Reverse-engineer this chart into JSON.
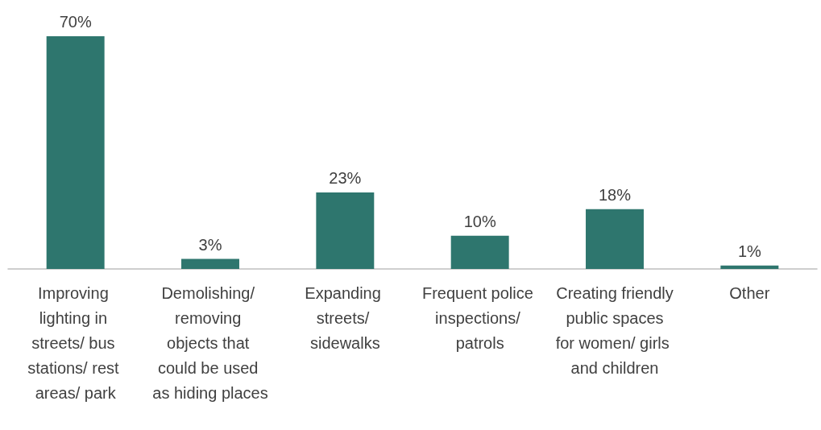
{
  "chart_data": {
    "type": "bar",
    "categories": [
      "Improving lighting in streets/ bus stations/ rest areas/ park",
      "Demolishing/ removing objects that could be used as hiding places",
      "Expanding streets/ sidewalks",
      "Frequent police inspections/ patrols",
      "Creating friendly public spaces for women/ girls and children",
      "Other"
    ],
    "values": [
      70,
      3,
      23,
      10,
      18,
      1
    ],
    "value_labels": [
      "70%",
      "3%",
      "23%",
      "10%",
      "18%",
      "1%"
    ],
    "color": "#2e766e"
  }
}
